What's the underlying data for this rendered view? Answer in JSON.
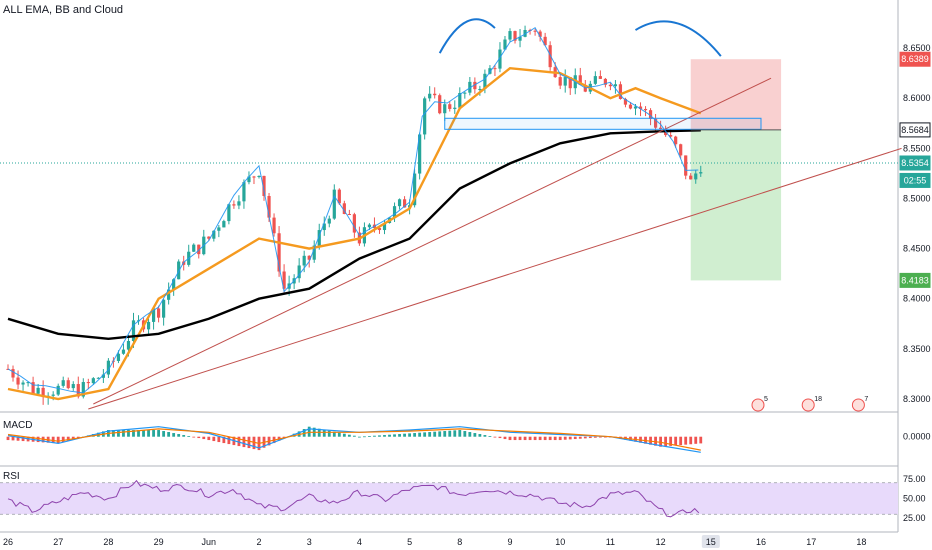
{
  "chart_title": "ALL EMA, BB and Cloud",
  "colors": {
    "bull": "#26a69a",
    "bear": "#ef5350",
    "ema_orange": "#f59a1f",
    "ema_black": "#000000",
    "bb_blue": "#2196f3",
    "trend_red": "#c0504d",
    "stop_zone": "#f8c8c8",
    "target_zone": "#c8ebc8",
    "rsi_band": "#e8dafb",
    "rsi_line": "#8e44ad",
    "macd_line": "#2196f3",
    "signal_line": "#f57c00",
    "hs_blue": "#1976d2",
    "grid": "#eef1f5",
    "axis_text": "#131722"
  },
  "x_axis": {
    "labels": [
      "26",
      "27",
      "28",
      "29",
      "Jun",
      "2",
      "3",
      "4",
      "5",
      "8",
      "9",
      "10",
      "11",
      "12",
      "15",
      "16",
      "17",
      "18"
    ],
    "highlighted": [
      "15"
    ]
  },
  "price_axis": {
    "ticks": [
      "8.6500",
      "8.6000",
      "8.5500",
      "8.5000",
      "8.4500",
      "8.4000",
      "8.3500",
      "8.3000"
    ],
    "ylim": [
      8.295,
      8.69
    ],
    "tags": [
      {
        "label": "8.6389",
        "value": 8.6389,
        "color": "#ef5350",
        "text_color": "#ffffff"
      },
      {
        "label": "8.5684",
        "value": 8.5684,
        "color": "#ffffff",
        "text_color": "#131722",
        "border": "#131722"
      },
      {
        "label": "8.5354",
        "value": 8.5354,
        "color": "#26a69a",
        "text_color": "#ffffff"
      },
      {
        "label": "02:55",
        "value": 8.518,
        "color": "#26a69a",
        "text_color": "#ffffff"
      },
      {
        "label": "8.4183",
        "value": 8.4183,
        "color": "#4caf50",
        "text_color": "#ffffff"
      }
    ]
  },
  "macd": {
    "label": "MACD",
    "tick": "0.0000"
  },
  "rsi": {
    "label": "RSI",
    "ticks": [
      "75.00",
      "50.00",
      "25.00"
    ],
    "band": [
      30,
      70
    ]
  },
  "events": [
    {
      "label": "5",
      "x_label": "16"
    },
    {
      "label": "18",
      "x_label": "17"
    },
    {
      "label": "7",
      "x_label": "18"
    }
  ],
  "chart_data": {
    "type": "candlestick",
    "title": "ALL EMA, BB and Cloud",
    "x": [
      "26",
      "27",
      "28",
      "29",
      "Jun",
      "2",
      "3",
      "4",
      "5",
      "8",
      "9",
      "10",
      "11",
      "12",
      "15",
      "16",
      "17",
      "18"
    ],
    "close_path": [
      [
        0,
        8.33
      ],
      [
        0.5,
        8.31
      ],
      [
        1,
        8.31
      ],
      [
        1.5,
        8.31
      ],
      [
        2,
        8.33
      ],
      [
        2.5,
        8.37
      ],
      [
        3,
        8.39
      ],
      [
        3.5,
        8.44
      ],
      [
        4,
        8.46
      ],
      [
        4.5,
        8.5
      ],
      [
        5,
        8.53
      ],
      [
        5.5,
        8.41
      ],
      [
        6,
        8.44
      ],
      [
        6.5,
        8.5
      ],
      [
        7,
        8.46
      ],
      [
        7.5,
        8.48
      ],
      [
        8,
        8.5
      ],
      [
        8.3,
        8.6
      ],
      [
        8.7,
        8.59
      ],
      [
        9,
        8.6
      ],
      [
        9.5,
        8.62
      ],
      [
        10,
        8.66
      ],
      [
        10.5,
        8.67
      ],
      [
        11,
        8.62
      ],
      [
        11.5,
        8.61
      ],
      [
        12,
        8.62
      ],
      [
        12.3,
        8.6
      ],
      [
        12.6,
        8.59
      ],
      [
        13.0,
        8.57
      ],
      [
        13.3,
        8.55
      ],
      [
        13.6,
        8.515
      ],
      [
        13.8,
        8.535
      ]
    ],
    "current_price": 8.5354,
    "ema_orange": [
      [
        0,
        8.31
      ],
      [
        1,
        8.3
      ],
      [
        2,
        8.31
      ],
      [
        3,
        8.4
      ],
      [
        4,
        8.43
      ],
      [
        5,
        8.46
      ],
      [
        6,
        8.45
      ],
      [
        7,
        8.46
      ],
      [
        8,
        8.49
      ],
      [
        9,
        8.59
      ],
      [
        10,
        8.63
      ],
      [
        11,
        8.625
      ],
      [
        12,
        8.6
      ],
      [
        12.5,
        8.61
      ],
      [
        13,
        8.6
      ],
      [
        13.8,
        8.585
      ]
    ],
    "ema_black": [
      [
        0,
        8.38
      ],
      [
        1,
        8.365
      ],
      [
        2,
        8.36
      ],
      [
        3,
        8.365
      ],
      [
        4,
        8.38
      ],
      [
        5,
        8.4
      ],
      [
        6,
        8.41
      ],
      [
        7,
        8.44
      ],
      [
        8,
        8.46
      ],
      [
        9,
        8.51
      ],
      [
        10,
        8.535
      ],
      [
        11,
        8.555
      ],
      [
        12,
        8.565
      ],
      [
        13,
        8.567
      ],
      [
        13.8,
        8.568
      ]
    ],
    "trendlines": [
      {
        "from": [
          1.7,
          8.295
        ],
        "to": [
          15.2,
          8.62
        ]
      },
      {
        "from": [
          1.6,
          8.29
        ],
        "to": [
          17.8,
          8.55
        ]
      }
    ],
    "support_box": {
      "x": [
        8.7,
        15.0
      ],
      "y": [
        8.569,
        8.58
      ]
    },
    "trade_setup": {
      "x": [
        13.6,
        15.4
      ],
      "entry": 8.5684,
      "stop": 8.6389,
      "target": 8.4183
    },
    "head_and_shoulders_arcs": [
      {
        "from": [
          8.6,
          8.645
        ],
        "to": [
          9.7,
          8.67
        ]
      },
      {
        "from": [
          12.5,
          8.668
        ],
        "to": [
          14.2,
          8.642
        ]
      }
    ],
    "macd": {
      "zero": 0.0,
      "range": [
        -0.02,
        0.015
      ],
      "line_path": [
        [
          0,
          0.001
        ],
        [
          1,
          -0.006
        ],
        [
          2,
          0.005
        ],
        [
          3,
          0.009
        ],
        [
          4,
          0.003
        ],
        [
          5,
          -0.01
        ],
        [
          6,
          0.007
        ],
        [
          7,
          0.004
        ],
        [
          8,
          0.006
        ],
        [
          9,
          0.009
        ],
        [
          10,
          0.004
        ],
        [
          11,
          0.002
        ],
        [
          12,
          0.0
        ],
        [
          13,
          -0.008
        ],
        [
          13.8,
          -0.014
        ]
      ],
      "signal_path": [
        [
          0,
          0.002
        ],
        [
          1,
          -0.004
        ],
        [
          2,
          0.003
        ],
        [
          3,
          0.007
        ],
        [
          4,
          0.004
        ],
        [
          5,
          -0.006
        ],
        [
          6,
          0.004
        ],
        [
          7,
          0.004
        ],
        [
          8,
          0.005
        ],
        [
          9,
          0.007
        ],
        [
          10,
          0.005
        ],
        [
          11,
          0.003
        ],
        [
          12,
          0.0
        ],
        [
          13,
          -0.005
        ],
        [
          13.8,
          -0.012
        ]
      ]
    },
    "rsi": {
      "range": [
        15,
        85
      ],
      "path": [
        [
          0,
          48
        ],
        [
          0.5,
          34
        ],
        [
          1,
          46
        ],
        [
          1.5,
          58
        ],
        [
          2,
          50
        ],
        [
          2.5,
          70
        ],
        [
          3,
          62
        ],
        [
          3.5,
          66
        ],
        [
          4,
          55
        ],
        [
          4.5,
          62
        ],
        [
          5,
          40
        ],
        [
          5.5,
          38
        ],
        [
          6,
          52
        ],
        [
          6.5,
          44
        ],
        [
          7,
          58
        ],
        [
          7.5,
          48
        ],
        [
          8,
          62
        ],
        [
          8.5,
          66
        ],
        [
          9,
          55
        ],
        [
          9.5,
          62
        ],
        [
          10,
          58
        ],
        [
          10.5,
          54
        ],
        [
          11,
          44
        ],
        [
          11.5,
          40
        ],
        [
          12,
          55
        ],
        [
          12.5,
          58
        ],
        [
          13,
          34
        ],
        [
          13.3,
          28
        ],
        [
          13.6,
          36
        ],
        [
          13.8,
          33
        ]
      ]
    }
  }
}
